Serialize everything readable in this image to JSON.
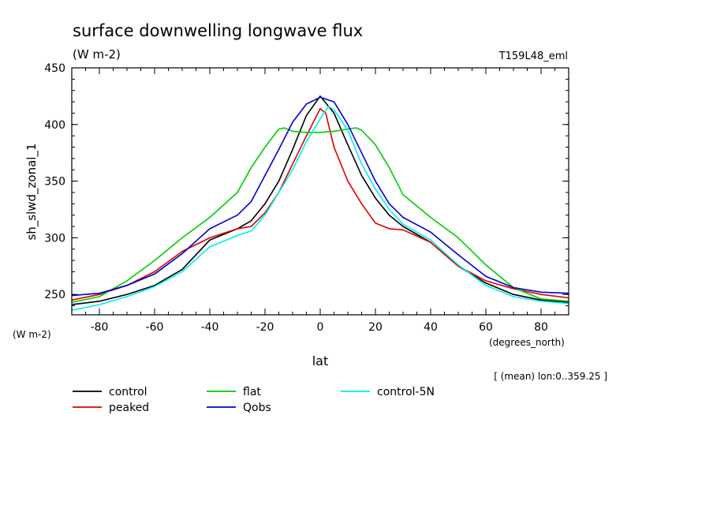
{
  "chart_data": {
    "type": "line",
    "title": "surface downwelling longwave flux",
    "units": "(W m-2)",
    "run_label": "T159L48_eml",
    "ylabel": "sh_slwd_zonal_1",
    "y_units_label": "(W m-2)",
    "xlabel": "lat",
    "x_units_label": "(degrees_north)",
    "footnote": "[ (mean) lon:0..359.25 ]",
    "xlim": [
      -90,
      90
    ],
    "ylim": [
      232,
      450
    ],
    "x_ticks": [
      -80,
      -60,
      -40,
      -20,
      0,
      20,
      40,
      60,
      80
    ],
    "x_tick_labels": [
      "-80",
      "-60",
      "-40",
      "-20",
      "0",
      "20",
      "40",
      "60",
      "80"
    ],
    "y_ticks": [
      250,
      300,
      350,
      400,
      450
    ],
    "y_tick_labels": [
      "250",
      "300",
      "350",
      "400",
      "450"
    ],
    "legend_placement": "below",
    "series": [
      {
        "name": "control",
        "color": "#000000",
        "x": [
          -90,
          -80,
          -70,
          -60,
          -50,
          -40,
          -30,
          -25,
          -20,
          -15,
          -10,
          -5,
          0,
          5,
          10,
          15,
          20,
          25,
          30,
          40,
          50,
          60,
          70,
          80,
          90
        ],
        "y": [
          241,
          244,
          250,
          258,
          272,
          298,
          308,
          315,
          330,
          350,
          378,
          408,
          425,
          410,
          382,
          355,
          335,
          320,
          310,
          296,
          275,
          260,
          250,
          245,
          243
        ]
      },
      {
        "name": "peaked",
        "color": "#dd0000",
        "x": [
          -90,
          -80,
          -70,
          -60,
          -50,
          -40,
          -30,
          -25,
          -20,
          -15,
          -10,
          -5,
          0,
          2,
          5,
          10,
          15,
          20,
          25,
          30,
          40,
          50,
          60,
          70,
          80,
          90
        ],
        "y": [
          245,
          250,
          258,
          270,
          288,
          300,
          308,
          310,
          322,
          340,
          365,
          390,
          414,
          410,
          380,
          350,
          330,
          313,
          308,
          307,
          296,
          275,
          262,
          255,
          250,
          247
        ]
      },
      {
        "name": "flat",
        "color": "#00cc00",
        "x": [
          -90,
          -80,
          -70,
          -60,
          -50,
          -40,
          -30,
          -25,
          -20,
          -15,
          -13,
          -10,
          -5,
          0,
          5,
          10,
          13,
          15,
          20,
          25,
          30,
          40,
          50,
          60,
          70,
          80,
          90
        ],
        "y": [
          243,
          248,
          262,
          280,
          300,
          318,
          340,
          362,
          380,
          396,
          397,
          394,
          393,
          393,
          394,
          396,
          397,
          395,
          382,
          362,
          338,
          318,
          300,
          276,
          256,
          246,
          244
        ]
      },
      {
        "name": "Qobs",
        "color": "#0000cc",
        "x": [
          -90,
          -80,
          -70,
          -60,
          -50,
          -40,
          -30,
          -25,
          -20,
          -15,
          -10,
          -5,
          0,
          5,
          10,
          15,
          20,
          25,
          30,
          40,
          50,
          60,
          70,
          80,
          90
        ],
        "y": [
          249,
          251,
          258,
          268,
          286,
          308,
          320,
          332,
          355,
          378,
          402,
          418,
          424,
          420,
          400,
          375,
          350,
          330,
          318,
          305,
          285,
          266,
          256,
          252,
          251
        ]
      },
      {
        "name": "control-5N",
        "color": "#00eeee",
        "x": [
          -90,
          -80,
          -70,
          -60,
          -50,
          -40,
          -30,
          -25,
          -20,
          -15,
          -10,
          -5,
          0,
          3,
          5,
          10,
          15,
          20,
          25,
          30,
          40,
          50,
          60,
          70,
          80,
          90
        ],
        "y": [
          236,
          241,
          248,
          257,
          270,
          292,
          302,
          306,
          320,
          340,
          360,
          385,
          405,
          416,
          413,
          395,
          365,
          343,
          325,
          312,
          298,
          276,
          258,
          248,
          244,
          242
        ]
      }
    ]
  }
}
